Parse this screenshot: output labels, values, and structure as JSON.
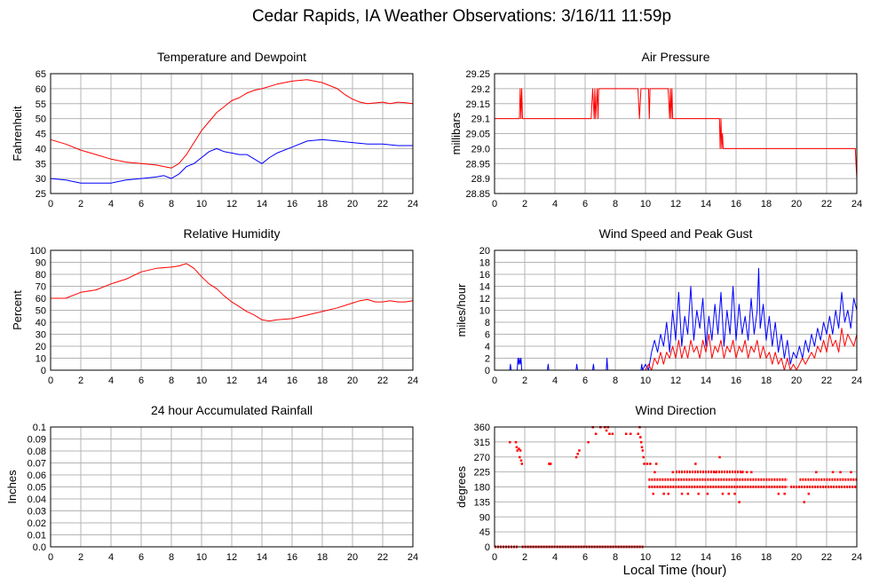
{
  "page": {
    "title": "Cedar Rapids, IA Weather Observations: 3/16/11 11:59p",
    "xlabel": "Local Time (hour)"
  },
  "chart_data": [
    {
      "id": "temp",
      "type": "line",
      "title": "Temperature and Dewpoint",
      "ylabel": "Fahrenheit",
      "xlim": [
        0,
        24
      ],
      "ylim": [
        25,
        65
      ],
      "xticks": [
        0,
        2,
        4,
        6,
        8,
        10,
        12,
        14,
        16,
        18,
        20,
        22,
        24
      ],
      "yticks": [
        25,
        30,
        35,
        40,
        45,
        50,
        55,
        60,
        65
      ],
      "grid": true,
      "series": [
        {
          "color": "#ff0000",
          "x": [
            0,
            1,
            2,
            3,
            4,
            5,
            6,
            7,
            7.5,
            8,
            8.5,
            9,
            9.5,
            10,
            10.5,
            11,
            11.5,
            12,
            12.5,
            13,
            13.5,
            14,
            15,
            16,
            17,
            18,
            19,
            19.5,
            20,
            20.5,
            21,
            22,
            22.5,
            23,
            23.5,
            24
          ],
          "y": [
            43,
            41.5,
            39.5,
            38,
            36.5,
            35.5,
            35,
            34.5,
            34,
            33.5,
            35,
            38,
            42,
            46,
            49,
            52,
            54,
            56,
            57,
            58.5,
            59.5,
            60,
            61.5,
            62.5,
            63,
            62,
            60,
            58,
            56.5,
            55.5,
            55,
            55.5,
            55,
            55.5,
            55.3,
            55
          ]
        },
        {
          "color": "#0000ff",
          "x": [
            0,
            1,
            2,
            3,
            4,
            5,
            6,
            7,
            7.5,
            8,
            8.5,
            9,
            9.5,
            10,
            10.5,
            11,
            11.5,
            12,
            12.5,
            13,
            13.5,
            14,
            14.5,
            15,
            16,
            17,
            18,
            19,
            20,
            21,
            22,
            23,
            24
          ],
          "y": [
            30,
            29.5,
            28.5,
            28.5,
            28.5,
            29.5,
            30,
            30.5,
            31,
            30,
            31.5,
            34,
            35,
            37,
            39,
            40,
            39,
            38.5,
            38,
            38,
            36.5,
            35,
            37,
            38.5,
            40.5,
            42.5,
            43,
            42.5,
            42,
            41.5,
            41.5,
            41,
            41
          ]
        }
      ]
    },
    {
      "id": "pressure",
      "type": "line",
      "title": "Air Pressure",
      "ylabel": "millibars",
      "xlim": [
        0,
        24
      ],
      "ylim": [
        28.85,
        29.25
      ],
      "xticks": [
        0,
        2,
        4,
        6,
        8,
        10,
        12,
        14,
        16,
        18,
        20,
        22,
        24
      ],
      "yticks": [
        "28.85",
        "28.9",
        "28.95",
        "29.0",
        "29.05",
        "29.1",
        "29.15",
        "29.2",
        "29.25"
      ],
      "grid": true,
      "series": [
        {
          "color": "#ff0000",
          "x": [
            0,
            1.65,
            1.7,
            1.75,
            1.8,
            1.85,
            1.9,
            6.4,
            6.5,
            6.6,
            6.65,
            6.7,
            6.8,
            6.85,
            6.9,
            7.0,
            9.5,
            9.6,
            9.7,
            9.8,
            10.2,
            10.25,
            10.3,
            10.35,
            11.5,
            11.6,
            11.65,
            11.7,
            11.75,
            11.8,
            14.9,
            14.95,
            15.0,
            15.05,
            15.1,
            15.15,
            23.9,
            23.95,
            24
          ],
          "y": [
            29.1,
            29.1,
            29.2,
            29.1,
            29.2,
            29.1,
            29.1,
            29.1,
            29.2,
            29.1,
            29.2,
            29.1,
            29.2,
            29.1,
            29.2,
            29.2,
            29.2,
            29.1,
            29.2,
            29.2,
            29.2,
            29.1,
            29.2,
            29.2,
            29.2,
            29.1,
            29.2,
            29.1,
            29.2,
            29.1,
            29.1,
            29.0,
            29.1,
            29.0,
            29.05,
            29.0,
            29.0,
            28.95,
            28.9
          ]
        }
      ]
    },
    {
      "id": "humidity",
      "type": "line",
      "title": "Relative Humidity",
      "ylabel": "Percent",
      "xlim": [
        0,
        24
      ],
      "ylim": [
        0,
        100
      ],
      "xticks": [
        0,
        2,
        4,
        6,
        8,
        10,
        12,
        14,
        16,
        18,
        20,
        22,
        24
      ],
      "yticks": [
        0,
        10,
        20,
        30,
        40,
        50,
        60,
        70,
        80,
        90,
        100
      ],
      "grid": true,
      "series": [
        {
          "color": "#ff0000",
          "x": [
            0,
            1,
            2,
            3,
            4,
            5,
            6,
            7,
            8,
            8.5,
            9,
            9.5,
            10,
            10.5,
            11,
            11.5,
            12,
            12.5,
            13,
            13.5,
            14,
            14.5,
            15,
            16,
            17,
            18,
            19,
            20,
            20.5,
            21,
            21.5,
            22,
            22.5,
            23,
            23.5,
            24
          ],
          "y": [
            60,
            60,
            65,
            67,
            72,
            76,
            82,
            85,
            86,
            87,
            89,
            85,
            78,
            72,
            68,
            62,
            57,
            53,
            49,
            46,
            42,
            41,
            42,
            43,
            46,
            49,
            52,
            56,
            58,
            59,
            57,
            57,
            58,
            57,
            57,
            58
          ]
        }
      ]
    },
    {
      "id": "wind",
      "type": "line",
      "title": "Wind Speed and Peak Gust",
      "ylabel": "miles/hour",
      "xlim": [
        0,
        24
      ],
      "ylim": [
        0,
        20
      ],
      "xticks": [
        0,
        2,
        4,
        6,
        8,
        10,
        12,
        14,
        16,
        18,
        20,
        22,
        24
      ],
      "yticks": [
        0,
        2,
        4,
        6,
        8,
        10,
        12,
        14,
        16,
        18,
        20
      ],
      "grid": true,
      "series": [
        {
          "color": "#0000ff",
          "x": [
            0,
            1.0,
            1.05,
            1.1,
            1.5,
            1.55,
            1.6,
            1.65,
            1.7,
            1.75,
            1.8,
            3.5,
            3.55,
            3.6,
            5.4,
            5.45,
            5.5,
            6.5,
            6.55,
            6.6,
            7.4,
            7.45,
            7.5,
            9.7,
            9.75,
            9.8,
            10,
            10.2,
            10.4,
            10.6,
            10.8,
            11,
            11.2,
            11.4,
            11.6,
            11.8,
            12,
            12.2,
            12.4,
            12.6,
            12.8,
            13,
            13.2,
            13.4,
            13.6,
            13.8,
            14,
            14.2,
            14.4,
            14.6,
            14.8,
            15,
            15.2,
            15.4,
            15.6,
            15.8,
            16,
            16.2,
            16.4,
            16.6,
            16.8,
            17,
            17.2,
            17.4,
            17.5,
            17.6,
            17.8,
            18,
            18.2,
            18.4,
            18.6,
            18.8,
            19,
            19.2,
            19.4,
            19.6,
            19.8,
            20,
            20.2,
            20.4,
            20.6,
            20.8,
            21,
            21.2,
            21.4,
            21.6,
            21.8,
            22,
            22.2,
            22.4,
            22.6,
            22.8,
            23,
            23.2,
            23.4,
            23.6,
            23.8,
            24
          ],
          "y": [
            0,
            0,
            1,
            0,
            0,
            2,
            1,
            2,
            1,
            2,
            0,
            0,
            1,
            0,
            0,
            1,
            0,
            0,
            1,
            0,
            0,
            2,
            0,
            0,
            1,
            0,
            1,
            0,
            3,
            5,
            3,
            6,
            4,
            8,
            3,
            10,
            5,
            13,
            4,
            9,
            6,
            14,
            5,
            10,
            7,
            12,
            4,
            9,
            5,
            11,
            6,
            13,
            4,
            10,
            6,
            14,
            5,
            11,
            6,
            9,
            5,
            12,
            6,
            10,
            17,
            7,
            11,
            5,
            9,
            4,
            8,
            3,
            6,
            2,
            5,
            1,
            3,
            2,
            4,
            2,
            5,
            3,
            6,
            4,
            7,
            5,
            8,
            6,
            9,
            6,
            10,
            7,
            13,
            8,
            10,
            7,
            12,
            10
          ]
        },
        {
          "color": "#ff0000",
          "x": [
            0,
            10,
            10.2,
            10.4,
            10.6,
            10.8,
            11,
            11.2,
            11.4,
            11.6,
            11.8,
            12,
            12.2,
            12.4,
            12.6,
            12.8,
            13,
            13.2,
            13.4,
            13.6,
            13.8,
            14,
            14.2,
            14.4,
            14.6,
            14.8,
            15,
            15.2,
            15.4,
            15.6,
            15.8,
            16,
            16.2,
            16.4,
            16.6,
            16.8,
            17,
            17.2,
            17.4,
            17.6,
            17.8,
            18,
            18.2,
            18.4,
            18.6,
            18.8,
            19,
            19.2,
            19.4,
            19.6,
            19.8,
            20,
            20.2,
            20.4,
            20.6,
            20.8,
            21,
            21.2,
            21.4,
            21.6,
            21.8,
            22,
            22.2,
            22.4,
            22.6,
            22.8,
            23,
            23.2,
            23.4,
            23.6,
            23.8,
            24
          ],
          "y": [
            0,
            0,
            1,
            0,
            2,
            1,
            3,
            1,
            3,
            2,
            4,
            2,
            5,
            2,
            4,
            2,
            5,
            3,
            4,
            2,
            5,
            3,
            6,
            2,
            4,
            3,
            5,
            2,
            4,
            3,
            5,
            2,
            4,
            3,
            5,
            2,
            4,
            3,
            5,
            2,
            4,
            2,
            3,
            1,
            3,
            1,
            2,
            0,
            2,
            0,
            1,
            0,
            1,
            2,
            1,
            2,
            3,
            2,
            4,
            3,
            5,
            3,
            6,
            4,
            5,
            3,
            7,
            4,
            6,
            5,
            4,
            6
          ]
        }
      ]
    },
    {
      "id": "rain",
      "type": "line",
      "title": "24 hour Accumulated Rainfall",
      "ylabel": "Inches",
      "xlim": [
        0,
        24
      ],
      "ylim": [
        0,
        0.1
      ],
      "xticks": [
        0,
        2,
        4,
        6,
        8,
        10,
        12,
        14,
        16,
        18,
        20,
        22,
        24
      ],
      "yticks": [
        "0.0",
        "0.01",
        "0.02",
        "0.03",
        "0.04",
        "0.05",
        "0.06",
        "0.07",
        "0.08",
        "0.09",
        "0.1"
      ],
      "grid": true,
      "series": [
        {
          "color": "#ff0000",
          "x": [
            0,
            24
          ],
          "y": [
            0,
            0
          ]
        }
      ]
    },
    {
      "id": "direction",
      "type": "scatter",
      "title": "Wind Direction",
      "ylabel": "degrees",
      "xlim": [
        0,
        24
      ],
      "ylim": [
        0,
        360
      ],
      "xticks": [
        0,
        2,
        4,
        6,
        8,
        10,
        12,
        14,
        16,
        18,
        20,
        22,
        24
      ],
      "yticks": [
        0,
        45,
        90,
        135,
        180,
        225,
        270,
        315,
        360
      ],
      "grid": true,
      "series": [
        {
          "color": "#ff0000",
          "bands": [
            {
              "x0": 0,
              "x1": 1.6,
              "y": 0
            },
            {
              "x0": 1.8,
              "x1": 9.9,
              "y": 0
            },
            {
              "x0": 10.2,
              "x1": 19.4,
              "y": 202
            },
            {
              "x0": 10.2,
              "x1": 19.4,
              "y": 180
            },
            {
              "x0": 20.2,
              "x1": 24,
              "y": 202
            },
            {
              "x0": 19.6,
              "x1": 24,
              "y": 180
            },
            {
              "x0": 12,
              "x1": 16.5,
              "y": 225
            }
          ],
          "x": [
            1.0,
            1.4,
            1.45,
            1.5,
            1.6,
            1.65,
            1.7,
            1.75,
            1.8,
            3.6,
            3.65,
            3.7,
            5.4,
            5.5,
            5.6,
            6.2,
            6.5,
            6.7,
            7.0,
            7.3,
            7.4,
            7.5,
            7.6,
            7.8,
            8.7,
            9.0,
            9.5,
            9.6,
            9.65,
            9.7,
            9.75,
            9.8,
            9.85,
            9.9,
            10.1,
            10.3,
            10.5,
            10.6,
            10.7,
            11.2,
            11.5,
            11.8,
            12.4,
            12.8,
            13.3,
            13.5,
            14.1,
            14.6,
            14.9,
            15.1,
            15.5,
            15.9,
            16.2,
            16.4,
            16.7,
            17.0,
            18.8,
            19.2,
            20.5,
            20.8,
            21.3,
            22.4,
            22.9,
            23.6
          ],
          "y": [
            315,
            315,
            300,
            290,
            295,
            270,
            290,
            260,
            250,
            250,
            250,
            250,
            270,
            280,
            290,
            315,
            360,
            340,
            360,
            360,
            350,
            360,
            340,
            340,
            340,
            340,
            340,
            360,
            330,
            315,
            300,
            290,
            270,
            250,
            250,
            250,
            160,
            225,
            250,
            160,
            160,
            225,
            160,
            160,
            250,
            160,
            160,
            225,
            270,
            160,
            160,
            160,
            135,
            225,
            225,
            225,
            160,
            160,
            135,
            160,
            225,
            225,
            225,
            225
          ]
        }
      ]
    }
  ]
}
